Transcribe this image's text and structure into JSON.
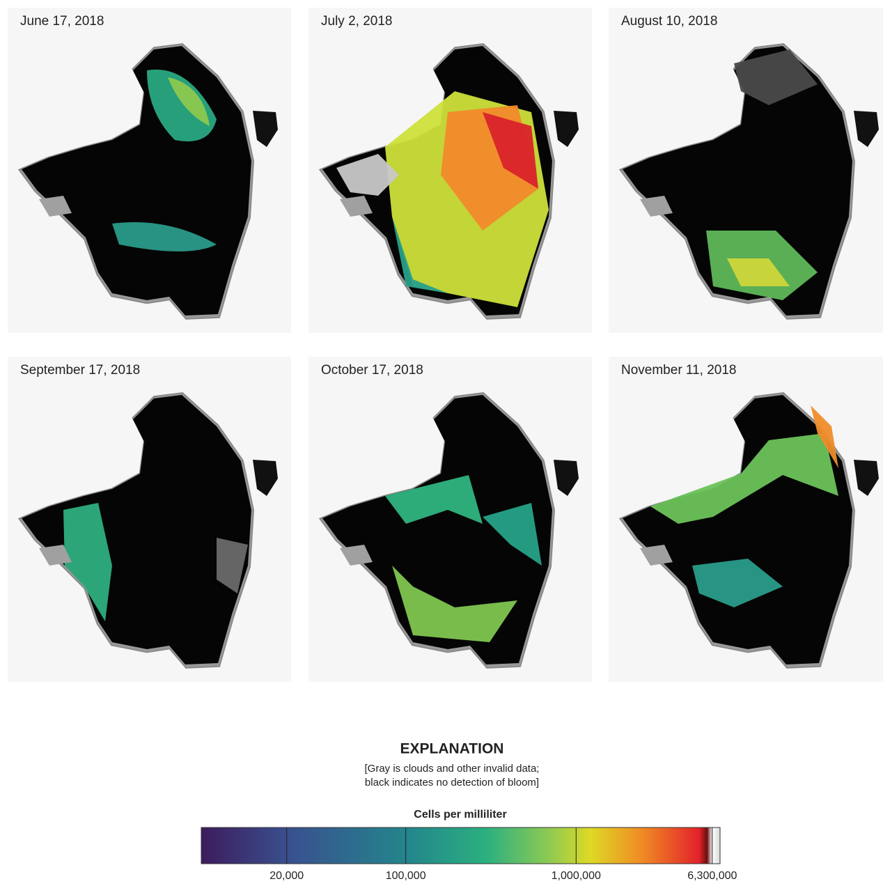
{
  "panels": [
    {
      "date": "June 17, 2018"
    },
    {
      "date": "July 2, 2018"
    },
    {
      "date": "August 10, 2018"
    },
    {
      "date": "September 17, 2018"
    },
    {
      "date": "October 17, 2018"
    },
    {
      "date": "November 11, 2018"
    }
  ],
  "legend": {
    "title": "EXPLANATION",
    "note_lines": [
      "[Gray is clouds and other invalid data;",
      "black indicates no detection of bloom]"
    ],
    "colorbar": {
      "label": "Cells per milliliter",
      "log_scale": true,
      "lim": [
        6300,
        7000000
      ],
      "ticks": [
        {
          "value": 20000,
          "label": "20,000"
        },
        {
          "value": 100000,
          "label": "100,000"
        },
        {
          "value": 1000000,
          "label": "1,000,000"
        },
        {
          "value": 6300000,
          "label": "6,300,000"
        }
      ]
    }
  }
}
